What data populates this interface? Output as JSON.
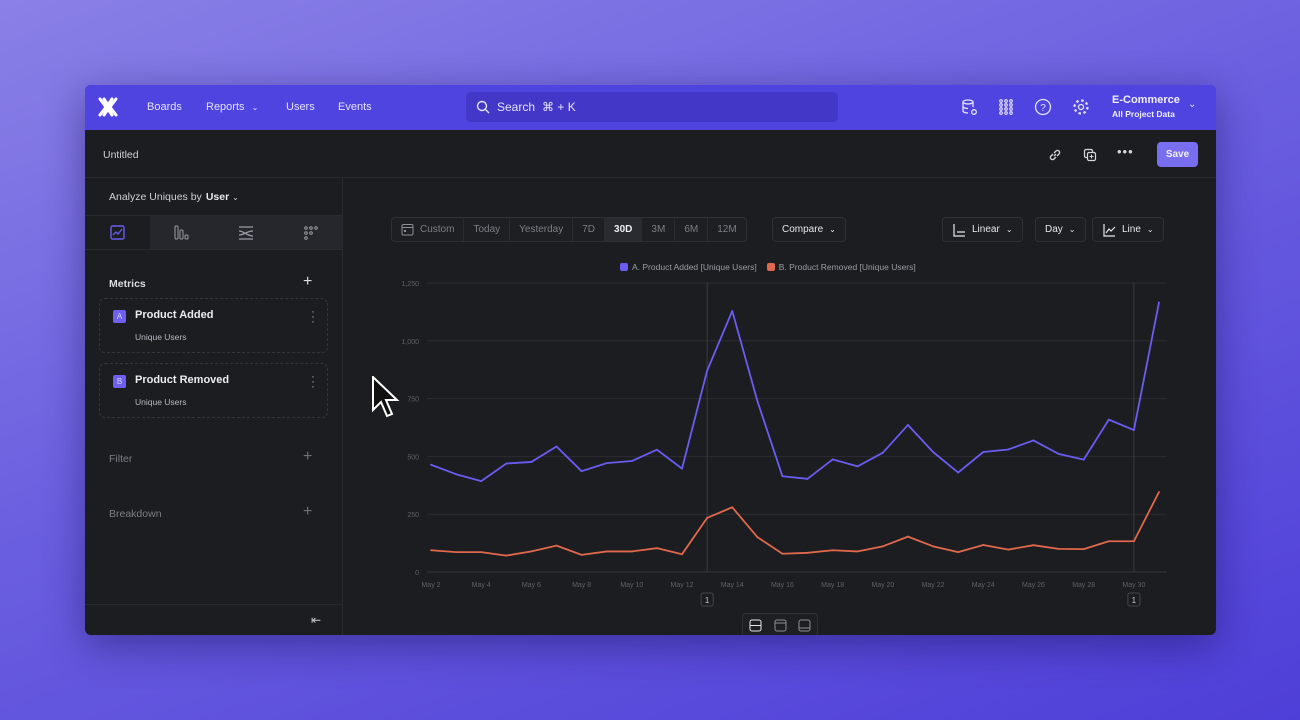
{
  "nav": {
    "links": [
      "Boards",
      "Reports",
      "Users",
      "Events"
    ],
    "search_label": "Search",
    "search_shortcut": "⌘ + K",
    "project_name": "E-Commerce",
    "project_scope": "All Project Data"
  },
  "header": {
    "title": "Untitled",
    "save_label": "Save"
  },
  "left": {
    "analyze_label": "Analyze Uniques by",
    "analyze_value": "User",
    "metrics_label": "Metrics",
    "metrics": [
      {
        "letter": "A",
        "name": "Product Added",
        "measure": "Unique Users"
      },
      {
        "letter": "B",
        "name": "Product Removed",
        "measure": "Unique Users"
      }
    ],
    "filter_label": "Filter",
    "breakdown_label": "Breakdown"
  },
  "toolbar": {
    "ranges": [
      "Custom",
      "Today",
      "Yesterday",
      "7D",
      "30D",
      "3M",
      "6M",
      "12M"
    ],
    "active_range": "30D",
    "compare_label": "Compare",
    "scale_label": "Linear",
    "interval_label": "Day",
    "chart_type_label": "Line"
  },
  "colors": {
    "accent": "#4f44e0",
    "series_a": "#6a5cf0",
    "series_b": "#e0684c"
  },
  "chart_data": {
    "type": "line",
    "x": [
      "May 2",
      "May 3",
      "May 4",
      "May 5",
      "May 6",
      "May 7",
      "May 8",
      "May 9",
      "May 10",
      "May 11",
      "May 12",
      "May 13",
      "May 14",
      "May 15",
      "May 16",
      "May 17",
      "May 18",
      "May 19",
      "May 20",
      "May 21",
      "May 22",
      "May 23",
      "May 24",
      "May 25",
      "May 26",
      "May 27",
      "May 28",
      "May 29",
      "May 30",
      "May 31"
    ],
    "x_tick_labels": [
      "May 2",
      "May 4",
      "May 6",
      "May 8",
      "May 10",
      "May 12",
      "May 14",
      "May 16",
      "May 18",
      "May 20",
      "May 22",
      "May 24",
      "May 26",
      "May 28",
      "May 30"
    ],
    "y_ticks": [
      "0",
      "250",
      "500",
      "750",
      "1,000",
      "1,250"
    ],
    "ylim": [
      0,
      1250
    ],
    "grid": true,
    "legend_position": "top-center",
    "series": [
      {
        "name": "A. Product Added [Unique Users]",
        "color": "#6a5cf0",
        "values": [
          464,
          423,
          393,
          469,
          476,
          543,
          436,
          471,
          480,
          529,
          447,
          871,
          1129,
          740,
          414,
          403,
          487,
          457,
          516,
          636,
          519,
          430,
          519,
          530,
          569,
          511,
          486,
          659,
          614,
          1166
        ]
      },
      {
        "name": "B. Product Removed [Unique Users]",
        "color": "#e0684c",
        "values": [
          94,
          86,
          86,
          71,
          89,
          114,
          74,
          89,
          89,
          103,
          77,
          234,
          280,
          151,
          79,
          83,
          94,
          89,
          111,
          153,
          111,
          86,
          117,
          97,
          116,
          100,
          99,
          133,
          133,
          346
        ]
      }
    ],
    "annotations": [
      {
        "x": "May 13",
        "label": "1"
      },
      {
        "x": "May 30",
        "label": "1"
      }
    ]
  }
}
